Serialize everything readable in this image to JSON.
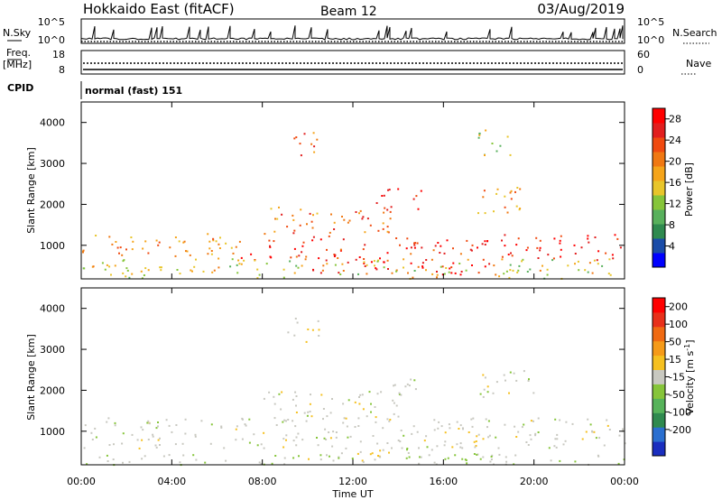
{
  "header": {
    "title": "Hokkaido East (fitACF)",
    "beam": "Beam 12",
    "date": "03/Aug/2019"
  },
  "noise_panel": {
    "left_label": "N.Sky",
    "right_label": "N.Search",
    "ticks": [
      "10^5",
      "10^0"
    ]
  },
  "freq_panel": {
    "left_label": "Freq.",
    "left_unit": "[MHz]",
    "left_ticks": [
      "18",
      "8"
    ],
    "right_label": "Nave",
    "right_ticks": [
      "60",
      "0"
    ]
  },
  "cpid_panel": {
    "left_label": "CPID",
    "mode": "normal (fast) 151"
  },
  "colors": {
    "power_scale": [
      "#0000ff",
      "#1a4ca8",
      "#2f8a4f",
      "#58b05c",
      "#86c53a",
      "#e8c52a",
      "#f5a41a",
      "#f07812",
      "#f04a10",
      "#e21e1e",
      "#ff0000"
    ],
    "velocity_scale": [
      "#1a2ebf",
      "#2a6fd0",
      "#2f8a4f",
      "#56b35a",
      "#86c53a",
      "#c8c8c0",
      "#f5c020",
      "#f59a18",
      "#f06a12",
      "#e8301a",
      "#ff0000"
    ]
  },
  "chart_data": [
    {
      "type": "heatmap",
      "name": "power-panel",
      "ylabel": "Slant Range [km]",
      "yticks": [
        "1000",
        "2000",
        "3000",
        "4000"
      ],
      "ylim": [
        180,
        4500
      ],
      "xlim": [
        0,
        24
      ],
      "colorbar": {
        "label": "Power [dB]",
        "ticks": [
          "4",
          "8",
          "12",
          "16",
          "20",
          "24",
          "28"
        ],
        "range": [
          0,
          30
        ]
      },
      "regions": [
        {
          "t0": 0,
          "t1": 7,
          "r0": 700,
          "r1": 1300,
          "v": 19
        },
        {
          "t0": 7,
          "t1": 18,
          "r0": 650,
          "r1": 1250,
          "v": 25
        },
        {
          "t0": 18.5,
          "t1": 24,
          "r0": 650,
          "r1": 1300,
          "v": 27
        },
        {
          "t0": 10,
          "t1": 18,
          "r0": 300,
          "r1": 650,
          "v": 29
        },
        {
          "t0": 13,
          "t1": 15,
          "r0": 1900,
          "r1": 2400,
          "v": 25
        },
        {
          "t0": 8,
          "t1": 14,
          "r0": 1300,
          "r1": 2000,
          "v": 21
        },
        {
          "t0": 17.5,
          "t1": 20,
          "r0": 1800,
          "r1": 2500,
          "v": 20
        },
        {
          "t0": 0,
          "t1": 24,
          "r0": 200,
          "r1": 700,
          "v": 15
        },
        {
          "t0": 9,
          "t1": 10.5,
          "r0": 3200,
          "r1": 3800,
          "v": 22
        },
        {
          "t0": 17.5,
          "t1": 19,
          "r0": 3200,
          "r1": 3900,
          "v": 14
        }
      ]
    },
    {
      "type": "heatmap",
      "name": "velocity-panel",
      "ylabel": "Slant Range [km]",
      "yticks": [
        "1000",
        "2000",
        "3000",
        "4000"
      ],
      "ylim": [
        180,
        4500
      ],
      "xlabel": "Time UT",
      "xticks": [
        "00:00",
        "04:00",
        "08:00",
        "12:00",
        "16:00",
        "20:00",
        "00:00"
      ],
      "xlim": [
        0,
        24
      ],
      "colorbar": {
        "label": "Velocity [m s-1]",
        "ticks": [
          "200",
          "100",
          "50",
          "15",
          "-15",
          "-50",
          "-100",
          "-200"
        ],
        "range": [
          -250,
          250
        ]
      },
      "regions": [
        {
          "t0": 0,
          "t1": 24,
          "r0": 600,
          "r1": 1350,
          "v": 0
        },
        {
          "t0": 13,
          "t1": 15,
          "r0": 1900,
          "r1": 2400,
          "v": 0
        },
        {
          "t0": 17.5,
          "t1": 20,
          "r0": 1800,
          "r1": 2500,
          "v": 0
        },
        {
          "t0": 10,
          "t1": 14,
          "r0": 300,
          "r1": 600,
          "v": 35
        },
        {
          "t0": 14,
          "t1": 18,
          "r0": 300,
          "r1": 650,
          "v": -40
        },
        {
          "t0": 16,
          "t1": 18,
          "r0": 600,
          "r1": 1000,
          "v": 40
        },
        {
          "t0": 0,
          "t1": 24,
          "r0": 200,
          "r1": 450,
          "v": -20
        },
        {
          "t0": 8,
          "t1": 14,
          "r0": 1300,
          "r1": 2000,
          "v": 0
        },
        {
          "t0": 9,
          "t1": 10.5,
          "r0": 3200,
          "r1": 3800,
          "v": 0
        }
      ]
    }
  ]
}
